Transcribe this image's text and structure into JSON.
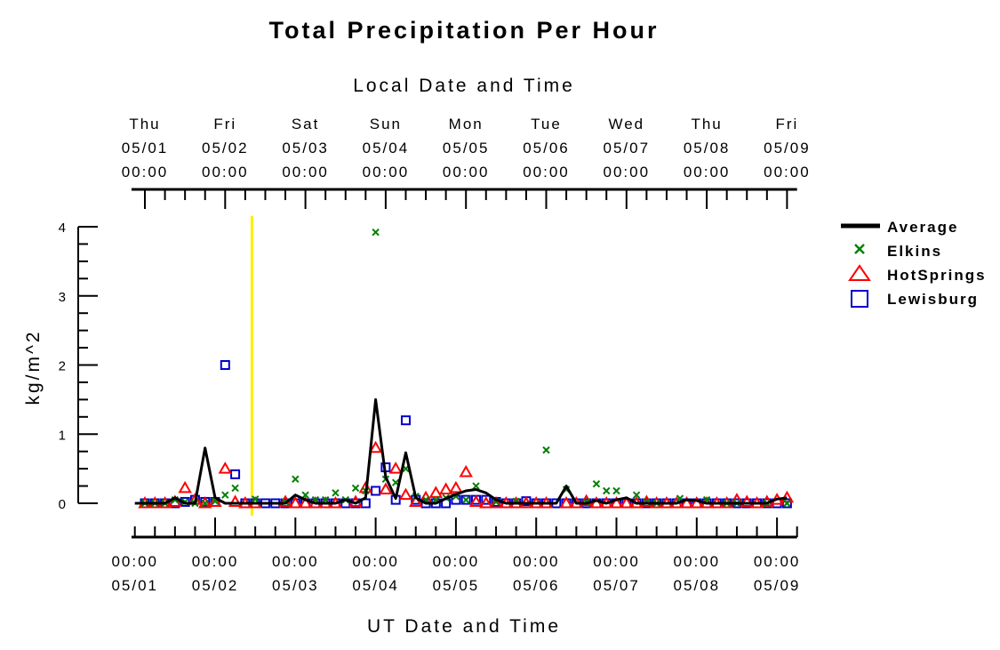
{
  "chart_data": {
    "type": "line",
    "title": "Total Precipitation Per Hour",
    "top_axis_label": "Local Date and Time",
    "xlabel": "UT Date and Time",
    "ylabel": "kg/m^2",
    "ylim": [
      0,
      4
    ],
    "y_ticks": [
      "0",
      "1",
      "2",
      "3",
      "4"
    ],
    "x_unit": "hours since 05/01 00:00 UT",
    "xlim": [
      -4,
      195
    ],
    "top_ticks": [
      {
        "day": "Thu",
        "date": "05/01",
        "time": "00:00"
      },
      {
        "day": "Fri",
        "date": "05/02",
        "time": "00:00"
      },
      {
        "day": "Sat",
        "date": "05/03",
        "time": "00:00"
      },
      {
        "day": "Sun",
        "date": "05/04",
        "time": "00:00"
      },
      {
        "day": "Mon",
        "date": "05/05",
        "time": "00:00"
      },
      {
        "day": "Tue",
        "date": "05/06",
        "time": "00:00"
      },
      {
        "day": "Wed",
        "date": "05/07",
        "time": "00:00"
      },
      {
        "day": "Thu",
        "date": "05/08",
        "time": "00:00"
      },
      {
        "day": "Fri",
        "date": "05/09",
        "time": "00:00"
      }
    ],
    "bottom_ticks": [
      {
        "time": "00:00",
        "date": "05/01"
      },
      {
        "time": "00:00",
        "date": "05/02"
      },
      {
        "time": "00:00",
        "date": "05/03"
      },
      {
        "time": "00:00",
        "date": "05/04"
      },
      {
        "time": "00:00",
        "date": "05/05"
      },
      {
        "time": "00:00",
        "date": "05/06"
      },
      {
        "time": "00:00",
        "date": "05/07"
      },
      {
        "time": "00:00",
        "date": "05/08"
      },
      {
        "time": "00:00",
        "date": "05/09"
      }
    ],
    "current_time_marker_x": 32,
    "legend_position": "right",
    "series": [
      {
        "name": "Average",
        "style": "line",
        "color": "#000000",
        "x": [
          -3,
          0,
          3,
          6,
          9,
          12,
          15,
          18,
          21,
          24,
          27,
          30,
          33,
          36,
          39,
          42,
          45,
          48,
          51,
          54,
          57,
          60,
          63,
          66,
          69,
          72,
          75,
          78,
          81,
          84,
          87,
          90,
          93,
          96,
          99,
          102,
          105,
          108,
          111,
          114,
          117,
          120,
          123,
          126,
          129,
          132,
          135,
          138,
          141,
          144,
          147,
          150,
          153,
          156,
          159,
          162,
          165,
          168,
          171,
          174,
          177,
          180,
          183,
          186,
          189,
          192
        ],
        "y": [
          0,
          0,
          0,
          0,
          0.08,
          0,
          0,
          0.8,
          0.08,
          0,
          0,
          0,
          0,
          0,
          0,
          0,
          0.12,
          0.05,
          0,
          0,
          0,
          0.05,
          0,
          0.08,
          1.5,
          0.38,
          0.07,
          0.73,
          0.08,
          0,
          0,
          0.07,
          0.13,
          0.18,
          0.2,
          0.15,
          0.05,
          0,
          0,
          0,
          0,
          0,
          0,
          0.25,
          0,
          0,
          0.04,
          0,
          0.05,
          0.08,
          0,
          0,
          0,
          0,
          0,
          0.05,
          0.04,
          0,
          0,
          0,
          0,
          0,
          0,
          0,
          0.06,
          0.08
        ]
      },
      {
        "name": "Elkins",
        "style": "x-marker",
        "color": "#008000",
        "x": [
          0,
          3,
          6,
          9,
          12,
          15,
          18,
          21,
          24,
          27,
          33,
          42,
          45,
          48,
          51,
          54,
          57,
          60,
          63,
          66,
          69,
          72,
          75,
          78,
          81,
          84,
          87,
          90,
          93,
          96,
          99,
          105,
          111,
          120,
          126,
          132,
          135,
          138,
          141,
          147,
          150,
          153,
          160,
          168,
          174,
          177,
          186,
          192
        ],
        "y": [
          0,
          0,
          0,
          0.05,
          0.02,
          0,
          0,
          0.03,
          0.12,
          0.22,
          0.06,
          0.02,
          0.35,
          0.12,
          0.05,
          0.05,
          0.15,
          0.05,
          0.22,
          0.18,
          3.92,
          0.35,
          0.3,
          0.5,
          0.1,
          0.05,
          0.05,
          0.08,
          0.1,
          0.05,
          0.25,
          0.02,
          0.03,
          0.77,
          0.2,
          0.02,
          0.28,
          0.18,
          0.18,
          0.12,
          0.02,
          0,
          0.07,
          0.05,
          0,
          0,
          0,
          0
        ]
      },
      {
        "name": "HotSprings",
        "style": "triangle",
        "color": "#ff0000",
        "x": [
          0,
          3,
          6,
          9,
          12,
          15,
          18,
          21,
          24,
          27,
          30,
          33,
          42,
          45,
          48,
          51,
          54,
          57,
          63,
          66,
          69,
          72,
          75,
          78,
          81,
          84,
          87,
          90,
          93,
          96,
          99,
          102,
          105,
          108,
          111,
          114,
          117,
          120,
          126,
          129,
          132,
          135,
          138,
          141,
          144,
          147,
          150,
          153,
          156,
          159,
          162,
          165,
          168,
          171,
          174,
          177,
          180,
          183,
          186,
          189,
          192
        ],
        "y": [
          0,
          0,
          0,
          0.02,
          0.22,
          0.05,
          0,
          0.02,
          0.5,
          0.02,
          0,
          0,
          0.02,
          0,
          0,
          0,
          0,
          0,
          0.02,
          0.22,
          0.8,
          0.2,
          0.5,
          0.12,
          0.02,
          0.08,
          0.15,
          0.2,
          0.22,
          0.45,
          0.02,
          0,
          0,
          0,
          0,
          0,
          0,
          0,
          0,
          0,
          0.03,
          0,
          0,
          0,
          0,
          0,
          0.02,
          0,
          0,
          0,
          0,
          0,
          0,
          0,
          0,
          0.05,
          0.02,
          0,
          0.02,
          0.05,
          0.08
        ]
      },
      {
        "name": "Lewisburg",
        "style": "square",
        "color": "#0000cc",
        "x": [
          0,
          3,
          6,
          9,
          12,
          15,
          18,
          21,
          24,
          27,
          30,
          33,
          36,
          39,
          42,
          45,
          48,
          51,
          54,
          57,
          60,
          63,
          66,
          69,
          72,
          75,
          78,
          81,
          84,
          87,
          90,
          93,
          96,
          99,
          102,
          105,
          108,
          111,
          114,
          117,
          120,
          123,
          126,
          129,
          132,
          135,
          138,
          141,
          144,
          147,
          150,
          153,
          156,
          159,
          162,
          165,
          168,
          171,
          174,
          177,
          180,
          183,
          186,
          189,
          192
        ],
        "y": [
          0,
          0,
          0,
          0,
          0.02,
          0.05,
          0.02,
          0.02,
          2.0,
          0.42,
          0,
          0,
          0,
          0,
          0,
          0,
          0,
          0,
          0,
          0,
          0,
          0,
          0,
          0.18,
          0.52,
          0.05,
          1.2,
          0.05,
          0,
          0,
          0,
          0.05,
          0.05,
          0.05,
          0.05,
          0.02,
          0,
          0,
          0.03,
          0,
          0,
          0,
          0,
          0,
          0,
          0,
          0,
          0,
          0,
          0,
          0,
          0,
          0,
          0,
          0,
          0,
          0,
          0,
          0,
          0,
          0,
          0,
          0,
          0,
          0
        ]
      }
    ]
  }
}
